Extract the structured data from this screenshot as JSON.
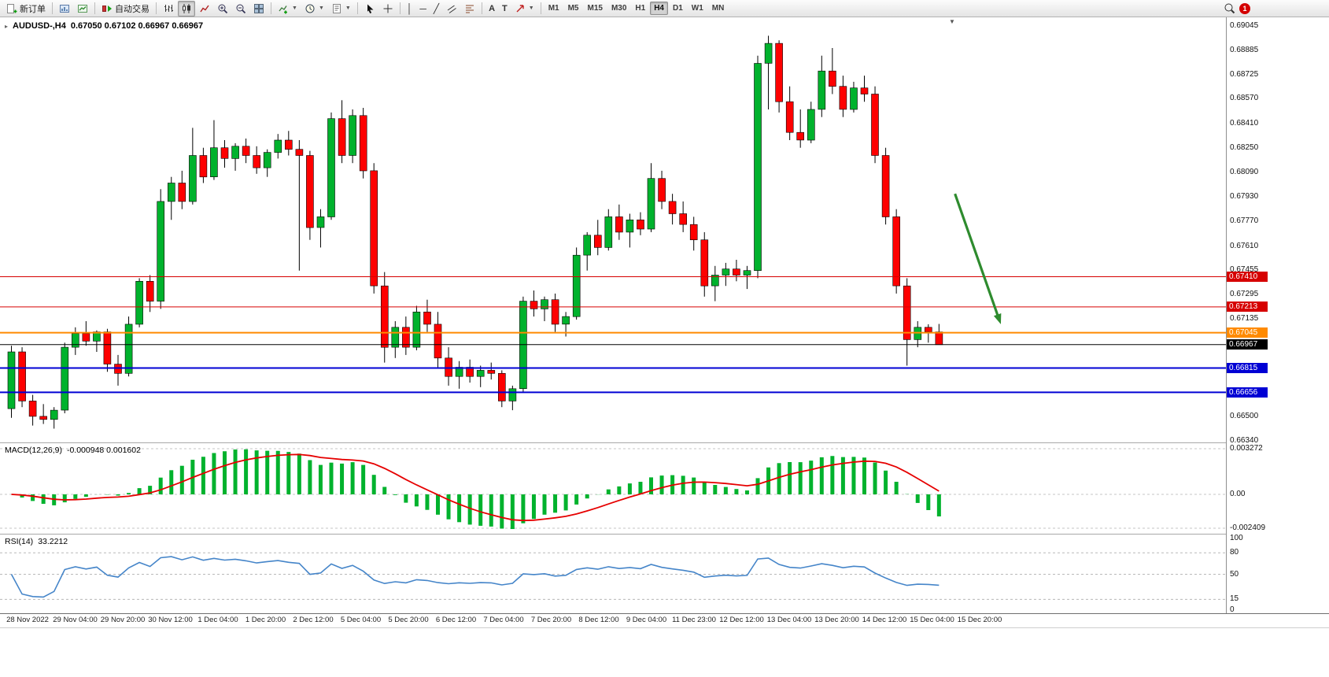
{
  "toolbar": {
    "new_order_label": "新订单",
    "auto_trading_label": "自动交易",
    "text_tool_label": "A",
    "label_tool_label": "T",
    "timeframes": [
      "M1",
      "M5",
      "M15",
      "M30",
      "H1",
      "H4",
      "D1",
      "W1",
      "MN"
    ],
    "active_timeframe": "H4",
    "badge_count": "1"
  },
  "chart": {
    "title": "AUDUSD-,H4",
    "ohlc": "0.67050 0.67102 0.66967 0.66967"
  },
  "panes": {
    "macd": {
      "label": "MACD(12,26,9)",
      "values": "-0.000948 0.001602",
      "fast": 12,
      "slow": 26,
      "signal_period": 9,
      "scale_labels": [
        "0.003272",
        "0.00",
        "-0.002409"
      ],
      "hist_color": "#00b22d",
      "signal_color": "#e60000"
    },
    "rsi": {
      "label": "RSI(14)",
      "value": "33.2212",
      "period": 14,
      "scale": [
        100,
        80,
        50,
        15,
        0
      ],
      "dashed_levels": [
        80,
        50,
        15
      ],
      "line_color": "#4585c9"
    }
  },
  "price_axis": {
    "ticks": [
      "0.69045",
      "0.68885",
      "0.68725",
      "0.68570",
      "0.68410",
      "0.68250",
      "0.68090",
      "0.67930",
      "0.67770",
      "0.67610",
      "0.67455",
      "0.67295",
      "0.67135",
      "0.66975",
      "0.66500",
      "0.66340"
    ]
  },
  "colors": {
    "bull": "#00b22d",
    "bear": "#fe0000",
    "wick": "#000000",
    "arrow": "#2e8b2e",
    "level_red": "#d60000",
    "level_orange": "#ff8a00",
    "level_blue": "#0000d4",
    "level_black": "#000000"
  },
  "chart_data": {
    "type": "candlestick",
    "symbol": "AUDUSD-",
    "timeframe": "H4",
    "ohlc_display": [
      0.6705,
      0.67102,
      0.66967,
      0.66967
    ],
    "ylim": [
      0.6633,
      0.691
    ],
    "x_labels": [
      "28 Nov 2022",
      "29 Nov 04:00",
      "29 Nov 20:00",
      "30 Nov 12:00",
      "1 Dec 04:00",
      "1 Dec 20:00",
      "2 Dec 12:00",
      "5 Dec 04:00",
      "5 Dec 20:00",
      "6 Dec 12:00",
      "7 Dec 04:00",
      "7 Dec 20:00",
      "8 Dec 12:00",
      "9 Dec 04:00",
      "11 Dec 23:00",
      "12 Dec 12:00",
      "13 Dec 04:00",
      "13 Dec 20:00",
      "14 Dec 12:00",
      "15 Dec 04:00",
      "15 Dec 20:00"
    ],
    "candles": [
      [
        0.6655,
        0.6696,
        0.6649,
        0.6692
      ],
      [
        0.6692,
        0.6695,
        0.6656,
        0.666
      ],
      [
        0.666,
        0.6664,
        0.6644,
        0.665
      ],
      [
        0.665,
        0.6658,
        0.6645,
        0.6648
      ],
      [
        0.6648,
        0.6656,
        0.6642,
        0.6654
      ],
      [
        0.6654,
        0.6698,
        0.6652,
        0.6695
      ],
      [
        0.6695,
        0.6708,
        0.669,
        0.6704
      ],
      [
        0.6704,
        0.6712,
        0.6696,
        0.6699
      ],
      [
        0.6699,
        0.6706,
        0.6692,
        0.6705
      ],
      [
        0.6705,
        0.6707,
        0.6679,
        0.6684
      ],
      [
        0.6684,
        0.669,
        0.667,
        0.6678
      ],
      [
        0.6678,
        0.6715,
        0.6676,
        0.671
      ],
      [
        0.671,
        0.674,
        0.6708,
        0.6738
      ],
      [
        0.6738,
        0.6742,
        0.6718,
        0.6725
      ],
      [
        0.6725,
        0.6798,
        0.672,
        0.679
      ],
      [
        0.679,
        0.6806,
        0.6778,
        0.6802
      ],
      [
        0.6802,
        0.681,
        0.6785,
        0.679
      ],
      [
        0.679,
        0.6838,
        0.6788,
        0.682
      ],
      [
        0.682,
        0.6825,
        0.6802,
        0.6806
      ],
      [
        0.6806,
        0.6843,
        0.6804,
        0.6825
      ],
      [
        0.6825,
        0.683,
        0.6812,
        0.6818
      ],
      [
        0.6818,
        0.6828,
        0.681,
        0.6826
      ],
      [
        0.6826,
        0.6831,
        0.6815,
        0.682
      ],
      [
        0.682,
        0.6826,
        0.6808,
        0.6812
      ],
      [
        0.6812,
        0.6824,
        0.6806,
        0.6822
      ],
      [
        0.6822,
        0.6834,
        0.6818,
        0.683
      ],
      [
        0.683,
        0.6836,
        0.682,
        0.6824
      ],
      [
        0.6824,
        0.683,
        0.6745,
        0.682
      ],
      [
        0.682,
        0.6823,
        0.6765,
        0.6773
      ],
      [
        0.6773,
        0.6785,
        0.676,
        0.678
      ],
      [
        0.678,
        0.6848,
        0.6778,
        0.6844
      ],
      [
        0.6844,
        0.6856,
        0.6815,
        0.682
      ],
      [
        0.682,
        0.685,
        0.6815,
        0.6846
      ],
      [
        0.6846,
        0.6851,
        0.6805,
        0.681
      ],
      [
        0.681,
        0.6815,
        0.673,
        0.6735
      ],
      [
        0.6735,
        0.6744,
        0.6685,
        0.6695
      ],
      [
        0.6695,
        0.6712,
        0.6688,
        0.6708
      ],
      [
        0.6708,
        0.6715,
        0.669,
        0.6695
      ],
      [
        0.6695,
        0.6722,
        0.6693,
        0.6718
      ],
      [
        0.6718,
        0.6726,
        0.6705,
        0.671
      ],
      [
        0.671,
        0.6718,
        0.6682,
        0.6688
      ],
      [
        0.6688,
        0.6695,
        0.667,
        0.6676
      ],
      [
        0.6676,
        0.6686,
        0.6668,
        0.6682
      ],
      [
        0.6682,
        0.6687,
        0.6672,
        0.6676
      ],
      [
        0.6676,
        0.6683,
        0.6669,
        0.668
      ],
      [
        0.668,
        0.6685,
        0.6674,
        0.6678
      ],
      [
        0.6678,
        0.668,
        0.6656,
        0.666
      ],
      [
        0.666,
        0.667,
        0.6654,
        0.6668
      ],
      [
        0.6668,
        0.6728,
        0.6666,
        0.6725
      ],
      [
        0.6725,
        0.6732,
        0.6715,
        0.672
      ],
      [
        0.672,
        0.6728,
        0.6712,
        0.6726
      ],
      [
        0.6726,
        0.673,
        0.6705,
        0.671
      ],
      [
        0.671,
        0.6718,
        0.6702,
        0.6715
      ],
      [
        0.6715,
        0.676,
        0.6713,
        0.6755
      ],
      [
        0.6755,
        0.677,
        0.6745,
        0.6768
      ],
      [
        0.6768,
        0.6778,
        0.6755,
        0.676
      ],
      [
        0.676,
        0.6785,
        0.6758,
        0.678
      ],
      [
        0.678,
        0.6788,
        0.6765,
        0.677
      ],
      [
        0.677,
        0.6782,
        0.676,
        0.6778
      ],
      [
        0.6778,
        0.6783,
        0.6768,
        0.6772
      ],
      [
        0.6772,
        0.6815,
        0.677,
        0.6805
      ],
      [
        0.6805,
        0.681,
        0.6785,
        0.679
      ],
      [
        0.679,
        0.6795,
        0.6775,
        0.6782
      ],
      [
        0.6782,
        0.679,
        0.677,
        0.6775
      ],
      [
        0.6775,
        0.678,
        0.6758,
        0.6765
      ],
      [
        0.6765,
        0.677,
        0.6728,
        0.6735
      ],
      [
        0.6735,
        0.6748,
        0.6725,
        0.6742
      ],
      [
        0.6742,
        0.675,
        0.6735,
        0.6746
      ],
      [
        0.6746,
        0.6752,
        0.6738,
        0.6742
      ],
      [
        0.6742,
        0.6748,
        0.6733,
        0.6745
      ],
      [
        0.6745,
        0.6885,
        0.674,
        0.688
      ],
      [
        0.688,
        0.6898,
        0.685,
        0.6893
      ],
      [
        0.6893,
        0.6895,
        0.6848,
        0.6855
      ],
      [
        0.6855,
        0.6865,
        0.683,
        0.6835
      ],
      [
        0.6835,
        0.685,
        0.6825,
        0.683
      ],
      [
        0.683,
        0.6855,
        0.6828,
        0.685
      ],
      [
        0.685,
        0.6885,
        0.6845,
        0.6875
      ],
      [
        0.6875,
        0.689,
        0.686,
        0.6865
      ],
      [
        0.6865,
        0.6872,
        0.6845,
        0.685
      ],
      [
        0.685,
        0.6868,
        0.6848,
        0.6864
      ],
      [
        0.6864,
        0.6872,
        0.6855,
        0.686
      ],
      [
        0.686,
        0.6865,
        0.6815,
        0.682
      ],
      [
        0.682,
        0.6825,
        0.6775,
        0.678
      ],
      [
        0.678,
        0.6785,
        0.673,
        0.6735
      ],
      [
        0.6735,
        0.674,
        0.6683,
        0.67
      ],
      [
        0.67,
        0.6712,
        0.6695,
        0.6708
      ],
      [
        0.6708,
        0.671,
        0.6698,
        0.6705
      ],
      [
        0.6705,
        0.67102,
        0.66967,
        0.66967
      ]
    ],
    "levels": [
      {
        "price": 0.6741,
        "label": "0.67410",
        "line_color": "#d60000",
        "line_width": 1,
        "tag_bg": "#d60000"
      },
      {
        "price": 0.67213,
        "label": "0.67213",
        "line_color": "#d60000",
        "line_width": 1,
        "tag_bg": "#d60000"
      },
      {
        "price": 0.67045,
        "label": "0.67045",
        "line_color": "#ff8a00",
        "line_width": 2,
        "tag_bg": "#ff8a00"
      },
      {
        "price": 0.66967,
        "label": "0.66967",
        "line_color": "#000000",
        "line_width": 1,
        "tag_bg": "#000000"
      },
      {
        "price": 0.66815,
        "label": "0.66815",
        "line_color": "#0000d4",
        "line_width": 2,
        "tag_bg": "#0000d4"
      },
      {
        "price": 0.66656,
        "label": "0.66656",
        "line_color": "#0000d4",
        "line_width": 2,
        "tag_bg": "#0000d4"
      }
    ],
    "annotations": [
      {
        "type": "arrow",
        "color": "#2e8b2e",
        "from": {
          "index": 88.5,
          "price": 0.6795
        },
        "to": {
          "index": 92.8,
          "price": 0.671
        }
      }
    ]
  }
}
